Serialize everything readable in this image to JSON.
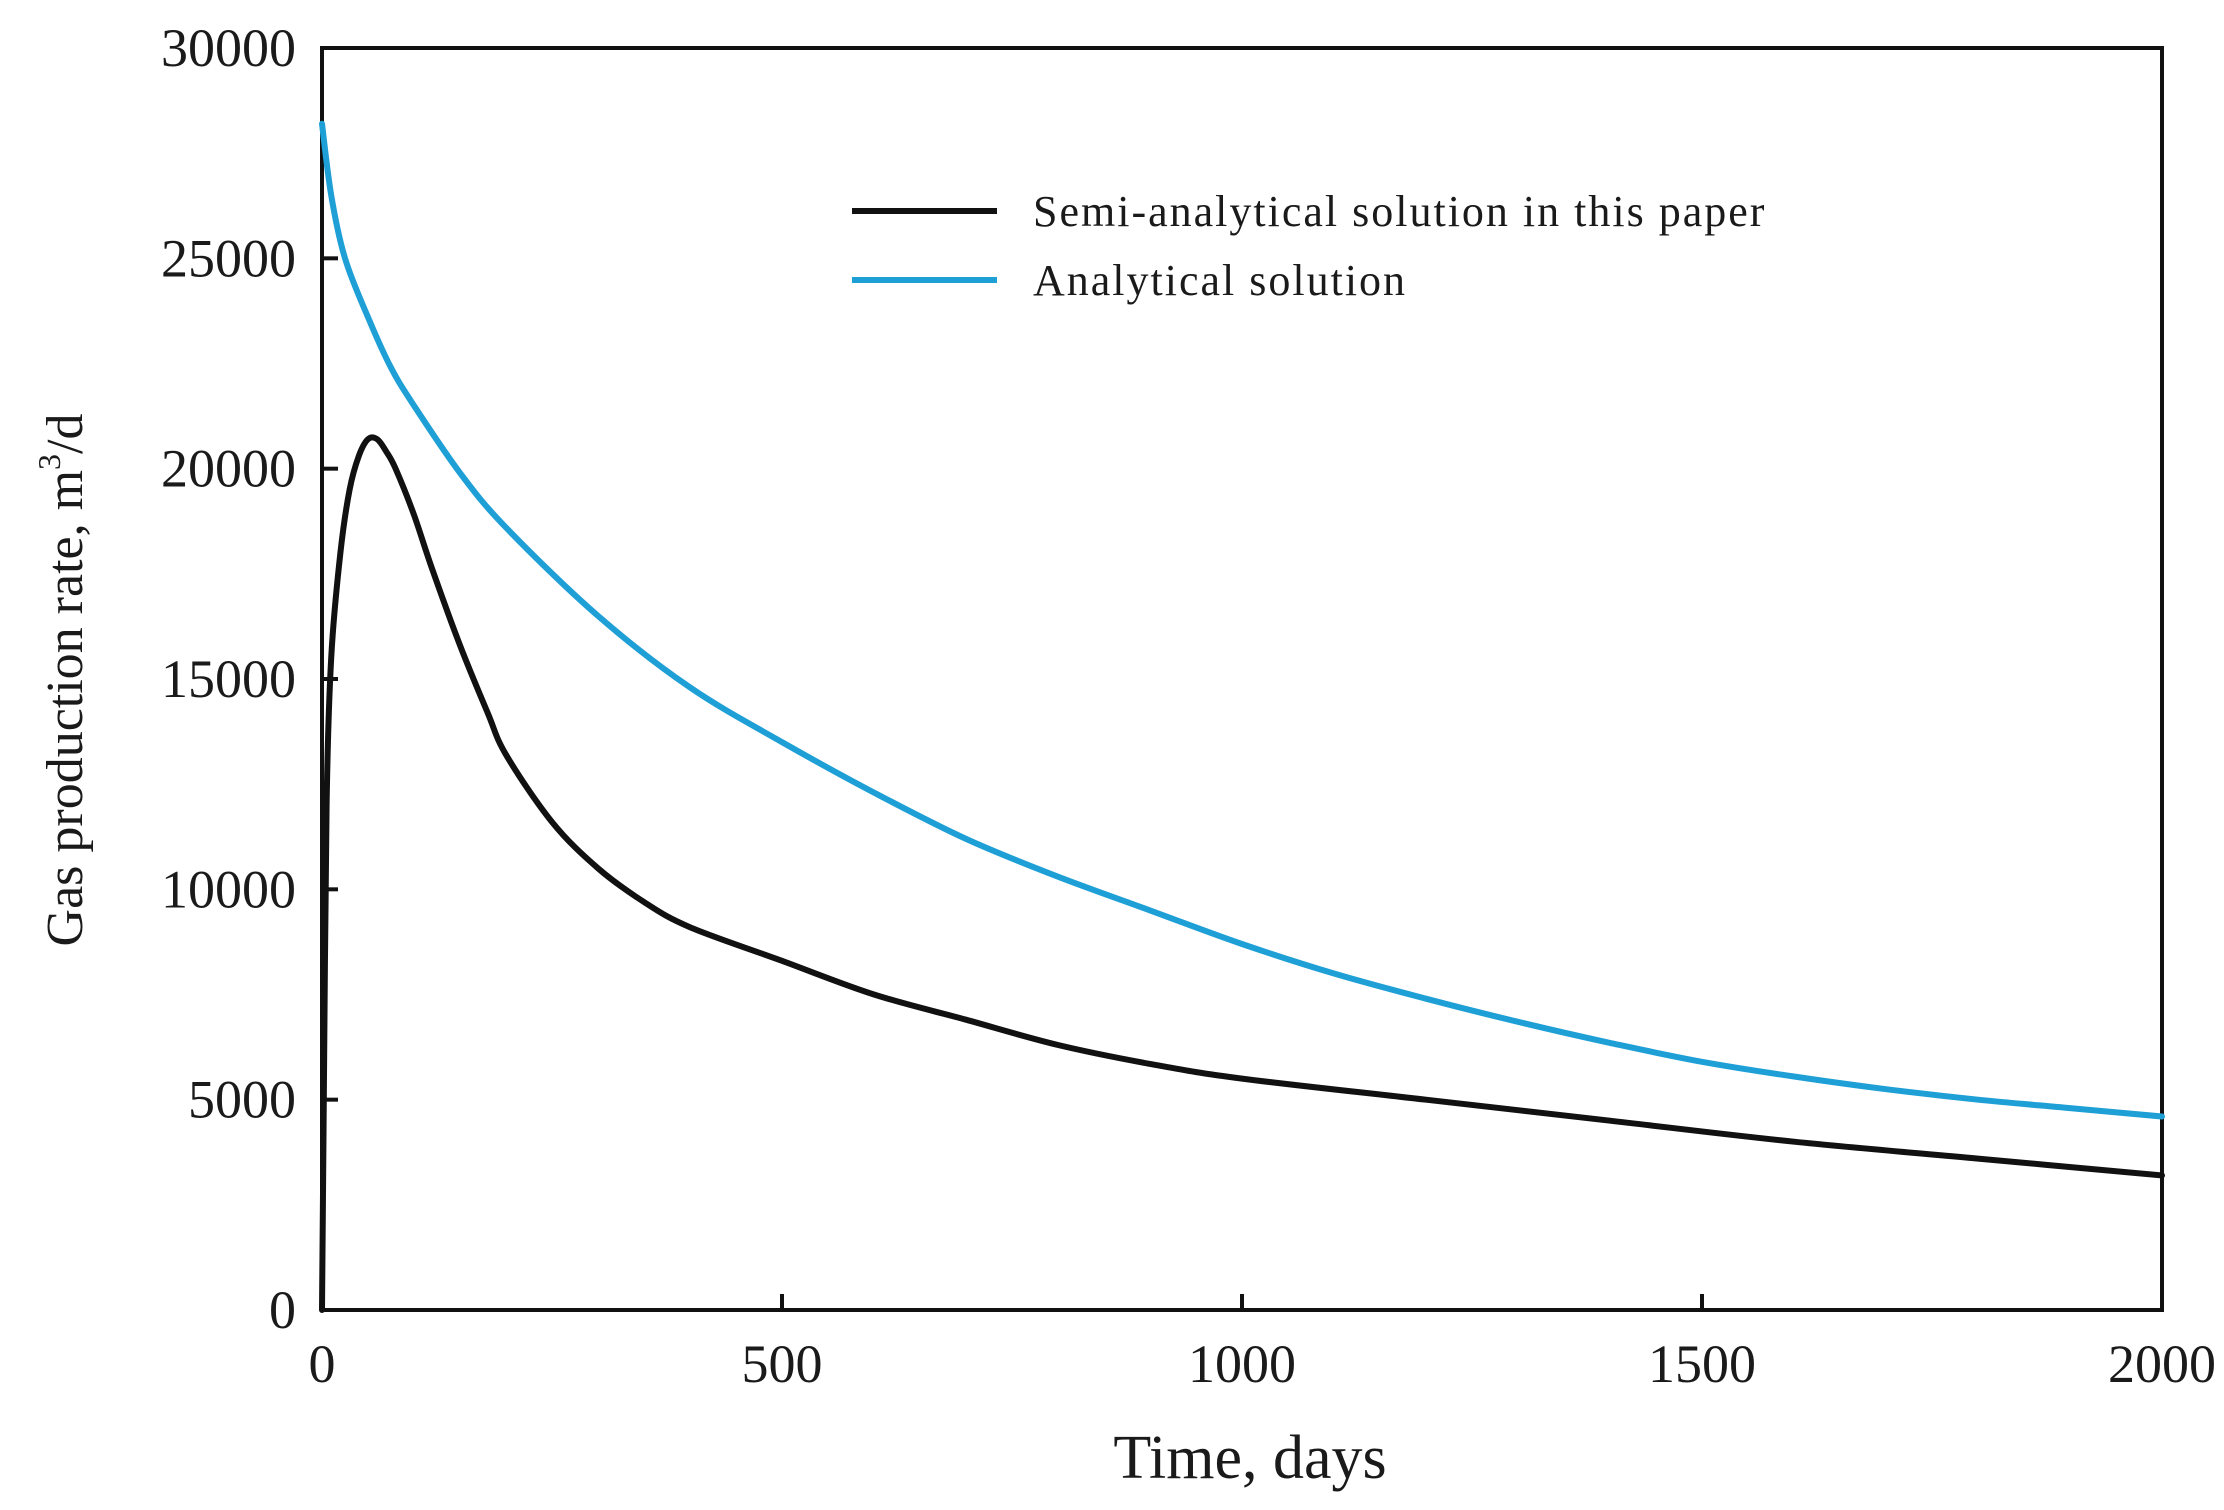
{
  "chart_data": {
    "type": "line",
    "title": "",
    "xlabel": "Time, days",
    "ylabel_main": "Gas production rate, m",
    "ylabel_sup": "3",
    "ylabel_suffix": "/d",
    "xlim": [
      0,
      2000
    ],
    "ylim": [
      0,
      30000
    ],
    "x_ticks": [
      0,
      500,
      1000,
      1500,
      2000
    ],
    "y_ticks": [
      0,
      5000,
      10000,
      15000,
      20000,
      25000,
      30000
    ],
    "x_tick_labels": [
      "0",
      "500",
      "1000",
      "1500",
      "2000"
    ],
    "y_tick_labels": [
      "0",
      "5000",
      "10000",
      "15000",
      "20000",
      "25000",
      "30000"
    ],
    "grid": false,
    "legend_position": "top-right",
    "series": [
      {
        "name": "Semi-analytical solution in this paper",
        "color": "#111111",
        "x": [
          0,
          2,
          5,
          10,
          20,
          30,
          40,
          50,
          60,
          70,
          80,
          100,
          120,
          150,
          180,
          200,
          250,
          300,
          350,
          400,
          500,
          600,
          700,
          800,
          900,
          1000,
          1200,
          1400,
          1600,
          1800,
          2000
        ],
        "y": [
          0,
          5000,
          12000,
          15500,
          18000,
          19500,
          20300,
          20700,
          20700,
          20400,
          20000,
          18900,
          17600,
          15800,
          14200,
          13200,
          11600,
          10500,
          9700,
          9100,
          8300,
          7500,
          6900,
          6300,
          5850,
          5500,
          5000,
          4500,
          4000,
          3600,
          3200
        ]
      },
      {
        "name": "Analytical solution",
        "color": "#1e9fd6",
        "x": [
          0,
          10,
          25,
          50,
          75,
          100,
          150,
          200,
          300,
          400,
          500,
          600,
          700,
          800,
          900,
          1000,
          1100,
          1200,
          1300,
          1400,
          1500,
          1600,
          1700,
          1800,
          1900,
          2000
        ],
        "y": [
          28200,
          26500,
          25000,
          23600,
          22400,
          21500,
          19900,
          18600,
          16500,
          14800,
          13500,
          12300,
          11200,
          10300,
          9500,
          8700,
          8000,
          7400,
          6850,
          6350,
          5900,
          5550,
          5250,
          5000,
          4800,
          4600
        ]
      }
    ]
  }
}
